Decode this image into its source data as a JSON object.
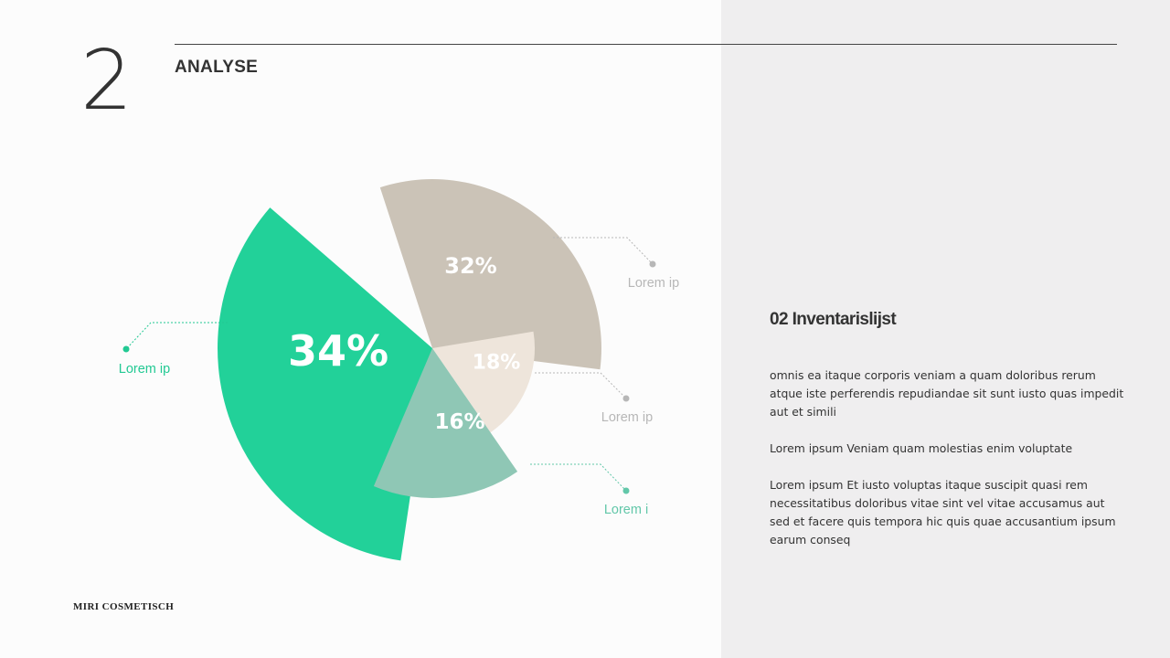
{
  "slide": {
    "section_number": "2",
    "section_title": "ANALYSE",
    "brand": "MIRI COSMETISCH"
  },
  "info": {
    "title": "02 Inventarislijst",
    "paragraphs": [
      "omnis ea itaque corporis veniam a quam doloribus rerum atque iste perferendis repudiandae sit sunt iusto quas impedit aut et simili",
      "Lorem ipsum Veniam quam molestias enim voluptate",
      "Lorem ipsum Et iusto voluptas itaque suscipit quasi rem necessitatibus doloribus vitae sint vel vitae accusamus aut sed et facere quis tempora hic quis quae accusantium ipsum earum conseq"
    ]
  },
  "colors": {
    "green": "#22d199",
    "taupe": "#cbc3b7",
    "cream": "#eee5db",
    "sage": "#8fc7b5",
    "gray_label": "#b7b7b7",
    "teal_label": "#62c7a9",
    "green_label": "#22c993"
  },
  "chart_data": {
    "type": "pie",
    "title": "",
    "slices": [
      {
        "label": "Lorem ip",
        "value": 34,
        "display": "34%",
        "color": "#22d199"
      },
      {
        "label": "Lorem ip",
        "value": 32,
        "display": "32%",
        "color": "#cbc3b7"
      },
      {
        "label": "Lorem ip",
        "value": 18,
        "display": "18%",
        "color": "#eee5db"
      },
      {
        "label": "Lorem i",
        "value": 16,
        "display": "16%",
        "color": "#8fc7b5"
      }
    ]
  }
}
